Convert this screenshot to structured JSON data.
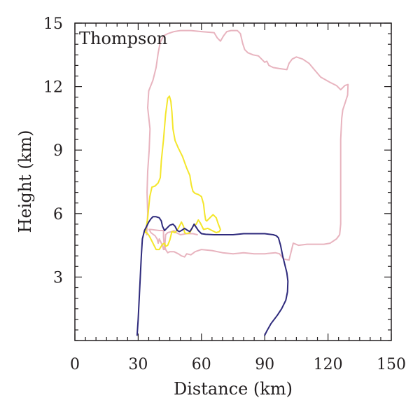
{
  "chart_data": {
    "type": "line",
    "title": "Thompson",
    "xlabel": "Distance (km)",
    "ylabel": "Height (km)",
    "xlim": [
      0,
      150
    ],
    "ylim": [
      0,
      15
    ],
    "xticks": [
      0,
      30,
      60,
      90,
      120,
      150
    ],
    "yticks": [
      3,
      6,
      9,
      12,
      15
    ],
    "xtick_labels": [
      "0",
      "30",
      "60",
      "90",
      "120",
      "150"
    ],
    "ytick_labels": [
      "3",
      "6",
      "9",
      "12",
      "15"
    ],
    "minor_tick_step": 0.5,
    "grid": false,
    "legend": "none",
    "series": [
      {
        "color": "#e8b4bf",
        "points": [
          [
            34,
            5.0
          ],
          [
            34.5,
            6.0
          ],
          [
            34.2,
            7.0
          ],
          [
            34.5,
            8.0
          ],
          [
            35.2,
            9.0
          ],
          [
            35.6,
            10.0
          ],
          [
            34.5,
            11.0
          ],
          [
            35.0,
            11.8
          ],
          [
            37.0,
            12.3
          ],
          [
            38.5,
            12.9
          ],
          [
            39.5,
            13.6
          ],
          [
            40.5,
            14.1
          ],
          [
            42.0,
            14.4
          ],
          [
            44.0,
            14.5
          ],
          [
            47.0,
            14.6
          ],
          [
            50.0,
            14.65
          ],
          [
            55.0,
            14.65
          ],
          [
            60.0,
            14.6
          ],
          [
            66.0,
            14.55
          ],
          [
            67.5,
            14.3
          ],
          [
            69.0,
            14.15
          ],
          [
            70.5,
            14.4
          ],
          [
            72.0,
            14.6
          ],
          [
            74.0,
            14.65
          ],
          [
            77.0,
            14.65
          ],
          [
            78.5,
            14.5
          ],
          [
            79.5,
            14.05
          ],
          [
            80.5,
            13.75
          ],
          [
            82.0,
            13.6
          ],
          [
            84.5,
            13.5
          ],
          [
            87.0,
            13.45
          ],
          [
            88.5,
            13.3
          ],
          [
            90.0,
            13.15
          ],
          [
            91.0,
            13.2
          ],
          [
            92.0,
            13.0
          ],
          [
            94.0,
            12.9
          ],
          [
            97.0,
            12.85
          ],
          [
            100.5,
            12.8
          ],
          [
            101.5,
            13.1
          ],
          [
            103.0,
            13.3
          ],
          [
            105.0,
            13.4
          ],
          [
            108.0,
            13.3
          ],
          [
            111.0,
            13.1
          ],
          [
            113.5,
            12.8
          ],
          [
            116.5,
            12.45
          ],
          [
            121.0,
            12.2
          ],
          [
            124.0,
            12.05
          ],
          [
            126.0,
            11.85
          ],
          [
            128.0,
            12.05
          ],
          [
            129.5,
            12.1
          ],
          [
            129.3,
            11.6
          ],
          [
            128.0,
            11.2
          ],
          [
            127.0,
            10.9
          ],
          [
            126.5,
            10.5
          ],
          [
            126.0,
            9.5
          ],
          [
            126.0,
            8.0
          ],
          [
            126.0,
            6.5
          ],
          [
            126.0,
            5.5
          ],
          [
            125.5,
            5.0
          ],
          [
            124.0,
            4.8
          ],
          [
            121.0,
            4.6
          ],
          [
            118.0,
            4.55
          ],
          [
            114.0,
            4.55
          ],
          [
            110.0,
            4.55
          ],
          [
            106.0,
            4.5
          ],
          [
            103.5,
            4.6
          ],
          [
            102.5,
            4.2
          ],
          [
            101.5,
            3.8
          ],
          [
            99.0,
            3.85
          ],
          [
            97.0,
            4.1
          ],
          [
            95.0,
            4.15
          ],
          [
            90.0,
            4.1
          ],
          [
            85.0,
            4.1
          ],
          [
            80.0,
            4.15
          ],
          [
            75.0,
            4.1
          ],
          [
            70.0,
            4.15
          ],
          [
            65.0,
            4.25
          ],
          [
            60.0,
            4.3
          ],
          [
            57.0,
            4.2
          ],
          [
            55.0,
            4.05
          ],
          [
            53.0,
            4.1
          ],
          [
            52.0,
            3.95
          ],
          [
            50.5,
            4.0
          ],
          [
            49.0,
            4.1
          ],
          [
            47.0,
            4.2
          ],
          [
            45.0,
            4.2
          ],
          [
            44.0,
            4.15
          ],
          [
            43.0,
            4.3
          ],
          [
            42.5,
            4.5
          ],
          [
            42.0,
            4.3
          ],
          [
            41.5,
            4.5
          ],
          [
            41.0,
            4.6
          ],
          [
            40.0,
            4.8
          ],
          [
            39.5,
            4.6
          ],
          [
            39.0,
            4.8
          ],
          [
            38.0,
            4.95
          ],
          [
            36.0,
            5.1
          ],
          [
            35.2,
            5.25
          ],
          [
            36.0,
            5.25
          ],
          [
            40.0,
            5.2
          ],
          [
            42.0,
            5.2
          ],
          [
            42.0,
            4.9
          ],
          [
            42.5,
            4.3
          ],
          [
            43.0,
            5.0
          ],
          [
            44.0,
            5.1
          ],
          [
            46.0,
            5.15
          ],
          [
            47.0,
            5.2
          ],
          [
            48.0,
            5.1
          ],
          [
            50.0,
            5.0
          ],
          [
            53.0,
            5.05
          ],
          [
            56.0,
            5.05
          ],
          [
            58.0,
            5.0
          ]
        ]
      },
      {
        "color": "#f4e62a",
        "points": [
          [
            33.5,
            5.1
          ],
          [
            34.5,
            5.8
          ],
          [
            35.5,
            6.8
          ],
          [
            36.5,
            7.25
          ],
          [
            38.0,
            7.3
          ],
          [
            39.5,
            7.45
          ],
          [
            40.5,
            7.7
          ],
          [
            41.0,
            8.5
          ],
          [
            42.0,
            9.5
          ],
          [
            43.0,
            10.7
          ],
          [
            44.0,
            11.45
          ],
          [
            44.8,
            11.55
          ],
          [
            45.5,
            11.3
          ],
          [
            46.0,
            10.8
          ],
          [
            46.5,
            10.0
          ],
          [
            47.5,
            9.45
          ],
          [
            49.0,
            9.1
          ],
          [
            51.0,
            8.7
          ],
          [
            53.0,
            8.15
          ],
          [
            54.5,
            7.8
          ],
          [
            55.2,
            7.35
          ],
          [
            56.0,
            7.05
          ],
          [
            57.0,
            6.95
          ],
          [
            58.5,
            6.9
          ],
          [
            60.0,
            6.8
          ],
          [
            61.0,
            6.45
          ],
          [
            61.5,
            6.0
          ],
          [
            62.0,
            5.7
          ],
          [
            62.5,
            5.65
          ],
          [
            64.0,
            5.8
          ],
          [
            65.5,
            5.95
          ],
          [
            67.0,
            5.8
          ],
          [
            68.0,
            5.5
          ],
          [
            69.0,
            5.25
          ],
          [
            68.5,
            5.15
          ],
          [
            67.0,
            5.1
          ],
          [
            65.0,
            5.2
          ],
          [
            63.0,
            5.3
          ],
          [
            61.0,
            5.25
          ],
          [
            59.5,
            5.55
          ],
          [
            58.5,
            5.7
          ],
          [
            57.5,
            5.5
          ],
          [
            56.0,
            5.4
          ],
          [
            54.5,
            5.1
          ],
          [
            53.0,
            5.05
          ],
          [
            52.0,
            5.1
          ],
          [
            51.5,
            5.4
          ],
          [
            50.5,
            5.6
          ],
          [
            49.0,
            5.3
          ],
          [
            47.5,
            5.1
          ],
          [
            46.0,
            5.15
          ],
          [
            45.0,
            4.75
          ],
          [
            44.0,
            4.5
          ],
          [
            43.0,
            4.45
          ],
          [
            42.5,
            4.6
          ],
          [
            41.5,
            4.55
          ],
          [
            40.0,
            4.3
          ],
          [
            38.5,
            4.3
          ],
          [
            37.5,
            4.5
          ],
          [
            36.5,
            4.7
          ],
          [
            35.2,
            4.95
          ],
          [
            34.0,
            5.1
          ],
          [
            33.5,
            5.1
          ]
        ]
      },
      {
        "color": "#2e2a7c",
        "points": [
          [
            29.5,
            0.25
          ],
          [
            30.0,
            1.0
          ],
          [
            30.5,
            2.0
          ],
          [
            31.0,
            3.0
          ],
          [
            31.5,
            4.0
          ],
          [
            32.0,
            4.8
          ],
          [
            33.0,
            5.2
          ],
          [
            34.0,
            5.4
          ],
          [
            35.0,
            5.6
          ],
          [
            36.0,
            5.75
          ],
          [
            37.0,
            5.85
          ],
          [
            38.5,
            5.85
          ],
          [
            40.0,
            5.8
          ],
          [
            41.0,
            5.65
          ],
          [
            41.5,
            5.4
          ],
          [
            42.5,
            5.2
          ],
          [
            43.5,
            5.3
          ],
          [
            45.0,
            5.45
          ],
          [
            46.5,
            5.5
          ],
          [
            47.5,
            5.4
          ],
          [
            48.5,
            5.2
          ],
          [
            49.5,
            5.15
          ],
          [
            50.5,
            5.2
          ],
          [
            52.0,
            5.3
          ],
          [
            53.5,
            5.2
          ],
          [
            54.5,
            5.15
          ],
          [
            55.5,
            5.3
          ],
          [
            56.5,
            5.5
          ],
          [
            57.5,
            5.35
          ],
          [
            58.5,
            5.2
          ],
          [
            60.0,
            5.05
          ],
          [
            62.0,
            5.02
          ],
          [
            66.0,
            5.0
          ],
          [
            70.0,
            5.0
          ],
          [
            75.0,
            5.0
          ],
          [
            80.0,
            5.05
          ],
          [
            84.0,
            5.05
          ],
          [
            86.0,
            5.05
          ],
          [
            90.0,
            5.05
          ],
          [
            94.0,
            5.0
          ],
          [
            95.5,
            4.95
          ],
          [
            96.5,
            4.85
          ],
          [
            97.5,
            4.5
          ],
          [
            98.5,
            4.0
          ],
          [
            99.5,
            3.6
          ],
          [
            100.5,
            3.2
          ],
          [
            101.0,
            2.8
          ],
          [
            100.8,
            2.3
          ],
          [
            100.0,
            1.9
          ],
          [
            98.0,
            1.5
          ],
          [
            96.0,
            1.2
          ],
          [
            93.0,
            0.8
          ],
          [
            91.0,
            0.45
          ],
          [
            90.0,
            0.25
          ]
        ]
      }
    ]
  }
}
